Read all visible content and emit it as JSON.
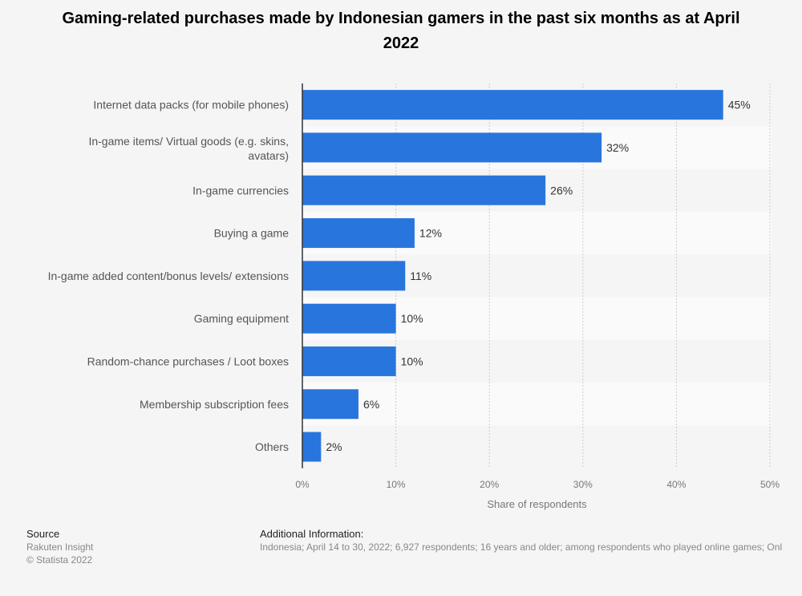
{
  "chart_data": {
    "type": "bar",
    "orientation": "horizontal",
    "title": "Gaming-related purchases made by Indonesian gamers in the past six months as at April 2022",
    "xlabel": "Share of respondents",
    "ylabel": "",
    "categories": [
      "Internet data packs (for mobile phones)",
      "In-game items/ Virtual goods (e.g. skins, avatars)",
      "In-game currencies",
      "Buying a game",
      "In-game added content/bonus levels/ extensions",
      "Gaming equipment",
      "Random-chance purchases / Loot boxes",
      "Membership subscription fees",
      "Others"
    ],
    "values": [
      45,
      32,
      26,
      12,
      11,
      10,
      10,
      6,
      2
    ],
    "data_labels": [
      "45%",
      "32%",
      "26%",
      "12%",
      "11%",
      "10%",
      "10%",
      "6%",
      "2%"
    ],
    "xlim": [
      0,
      50
    ],
    "ticks": [
      "0%",
      "10%",
      "20%",
      "30%",
      "40%",
      "50%"
    ],
    "grid": true,
    "bar_color": "#2876dd"
  },
  "footer": {
    "source_heading": "Source",
    "source": "Rakuten Insight",
    "copyright": "© Statista 2022",
    "info_heading": "Additional Information:",
    "info": "Indonesia; April 14 to 30, 2022; 6,927 respondents; 16 years and older; among respondents who played online games; Onl"
  }
}
